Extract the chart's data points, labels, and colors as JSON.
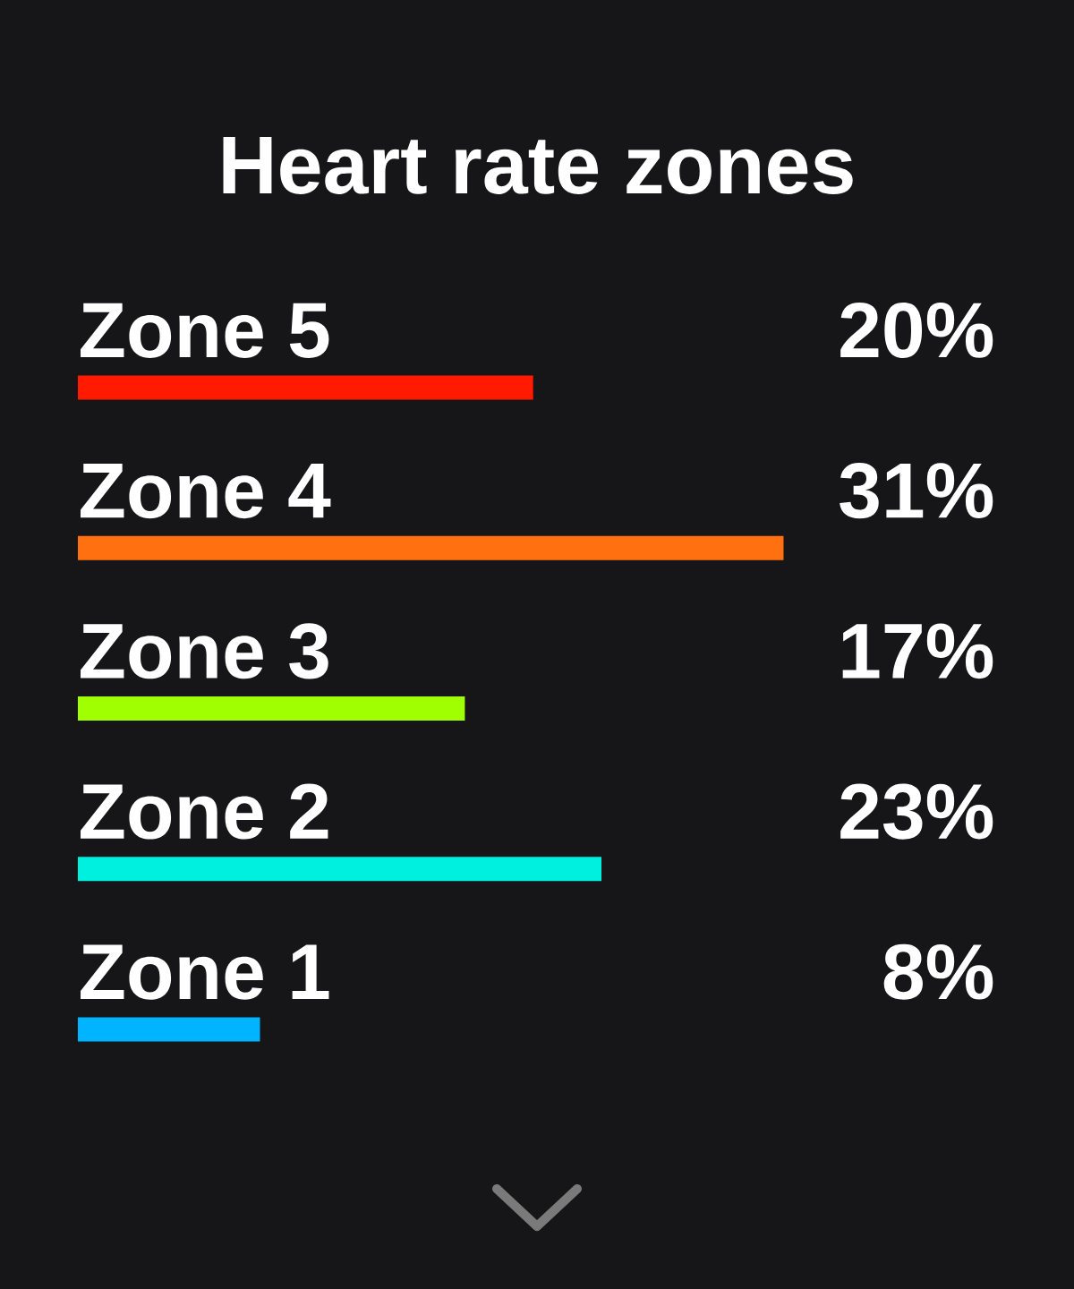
{
  "chart_data": {
    "type": "bar",
    "orientation": "horizontal",
    "title": "Heart rate zones",
    "categories": [
      "Zone 5",
      "Zone 4",
      "Zone 3",
      "Zone 2",
      "Zone 1"
    ],
    "values": [
      20,
      31,
      17,
      23,
      8
    ],
    "colors": [
      "#ff1a00",
      "#ff7010",
      "#a0ff00",
      "#00f0e0",
      "#00b4ff"
    ],
    "value_labels": [
      "20%",
      "31%",
      "17%",
      "23%",
      "8%"
    ]
  }
}
